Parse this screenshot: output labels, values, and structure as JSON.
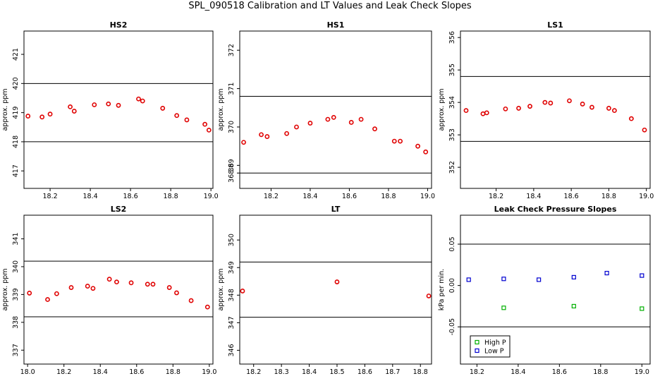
{
  "page_title": "SPL_090518  Calibration and LT Values and Leak Check Slopes",
  "colors": {
    "red": "#e00000",
    "green": "#00b000",
    "blue": "#0000d0",
    "ref": "#000000"
  },
  "chart_data": [
    {
      "type": "scatter",
      "title": "HS2",
      "ylabel": "approx. ppm",
      "xlim": [
        18.07,
        19.01
      ],
      "ylim": [
        416.4,
        421.8
      ],
      "xticks": [
        "18.2",
        "18.4",
        "18.6",
        "18.8",
        "19.0"
      ],
      "yticks": [
        "417",
        "418",
        "419",
        "420",
        "421"
      ],
      "hlines": [
        420.0,
        418.0
      ],
      "series": [
        {
          "color": "red",
          "points": [
            [
              18.09,
              418.88
            ],
            [
              18.16,
              418.85
            ],
            [
              18.2,
              418.95
            ],
            [
              18.3,
              419.2
            ],
            [
              18.32,
              419.05
            ],
            [
              18.42,
              419.27
            ],
            [
              18.49,
              419.3
            ],
            [
              18.54,
              419.25
            ],
            [
              18.64,
              419.47
            ],
            [
              18.66,
              419.4
            ],
            [
              18.76,
              419.15
            ],
            [
              18.83,
              418.9
            ],
            [
              18.88,
              418.75
            ],
            [
              18.97,
              418.6
            ],
            [
              18.99,
              418.4
            ]
          ]
        }
      ]
    },
    {
      "type": "scatter",
      "title": "HS1",
      "ylabel": "approx. ppm",
      "xlim": [
        18.04,
        19.02
      ],
      "ylim": [
        368.4,
        372.5
      ],
      "xticks": [
        "18.2",
        "18.4",
        "18.6",
        "18.8",
        "19.0"
      ],
      "yticks": [
        "368.8",
        "369",
        "370",
        "371",
        "372"
      ],
      "hlines": [
        370.8,
        368.8
      ],
      "series": [
        {
          "color": "red",
          "points": [
            [
              18.06,
              369.6
            ],
            [
              18.15,
              369.8
            ],
            [
              18.18,
              369.75
            ],
            [
              18.28,
              369.83
            ],
            [
              18.33,
              370.0
            ],
            [
              18.4,
              370.1
            ],
            [
              18.49,
              370.2
            ],
            [
              18.52,
              370.25
            ],
            [
              18.61,
              370.12
            ],
            [
              18.66,
              370.2
            ],
            [
              18.73,
              369.95
            ],
            [
              18.83,
              369.63
            ],
            [
              18.86,
              369.63
            ],
            [
              18.95,
              369.5
            ],
            [
              18.99,
              369.35
            ]
          ]
        }
      ]
    },
    {
      "type": "scatter",
      "title": "LS1",
      "ylabel": "approx. ppm",
      "xlim": [
        18.01,
        19.02
      ],
      "ylim": [
        351.35,
        356.2
      ],
      "xticks": [
        "18.2",
        "18.4",
        "18.6",
        "18.8",
        "19.0"
      ],
      "yticks": [
        "352",
        "353",
        "354",
        "355",
        "356"
      ],
      "hlines": [
        354.8,
        352.8
      ],
      "series": [
        {
          "color": "red",
          "points": [
            [
              18.04,
              353.75
            ],
            [
              18.13,
              353.65
            ],
            [
              18.15,
              353.68
            ],
            [
              18.25,
              353.8
            ],
            [
              18.32,
              353.82
            ],
            [
              18.38,
              353.88
            ],
            [
              18.46,
              354.0
            ],
            [
              18.49,
              353.98
            ],
            [
              18.59,
              354.05
            ],
            [
              18.66,
              353.95
            ],
            [
              18.71,
              353.85
            ],
            [
              18.8,
              353.82
            ],
            [
              18.83,
              353.75
            ],
            [
              18.92,
              353.5
            ],
            [
              18.99,
              353.15
            ]
          ]
        }
      ]
    },
    {
      "type": "scatter",
      "title": "LS2",
      "ylabel": "approx. ppm",
      "xlim": [
        17.98,
        19.02
      ],
      "ylim": [
        336.5,
        341.85
      ],
      "xticks": [
        "18.0",
        "18.2",
        "18.4",
        "18.6",
        "18.8",
        "19.0"
      ],
      "yticks": [
        "337",
        "338",
        "339",
        "340",
        "341"
      ],
      "hlines": [
        340.2,
        338.2
      ],
      "series": [
        {
          "color": "red",
          "points": [
            [
              18.01,
              339.05
            ],
            [
              18.11,
              338.82
            ],
            [
              18.16,
              339.03
            ],
            [
              18.24,
              339.25
            ],
            [
              18.33,
              339.3
            ],
            [
              18.36,
              339.22
            ],
            [
              18.45,
              339.55
            ],
            [
              18.49,
              339.45
            ],
            [
              18.57,
              339.42
            ],
            [
              18.66,
              339.37
            ],
            [
              18.69,
              339.37
            ],
            [
              18.78,
              339.25
            ],
            [
              18.82,
              339.06
            ],
            [
              18.9,
              338.78
            ],
            [
              18.99,
              338.55
            ]
          ]
        }
      ]
    },
    {
      "type": "scatter",
      "title": "LT",
      "ylabel": "approx. ppm",
      "xlim": [
        18.15,
        18.84
      ],
      "ylim": [
        345.5,
        350.9
      ],
      "xticks": [
        "18.2",
        "18.3",
        "18.4",
        "18.5",
        "18.6",
        "18.7",
        "18.8"
      ],
      "yticks": [
        "346",
        "347",
        "348",
        "349",
        "350"
      ],
      "hlines": [
        349.2,
        347.2
      ],
      "series": [
        {
          "color": "red",
          "points": [
            [
              18.16,
              348.15
            ],
            [
              18.5,
              348.48
            ],
            [
              18.83,
              347.97
            ]
          ]
        }
      ]
    },
    {
      "type": "scatter",
      "title": "Leak Check Pressure Slopes",
      "ylabel": "kPa per min.",
      "xlim": [
        18.12,
        19.04
      ],
      "ylim": [
        -0.095,
        0.085
      ],
      "xticks": [
        "18.2",
        "18.4",
        "18.6",
        "18.8",
        "19.0"
      ],
      "yticks": [
        "-0.05",
        "0.00",
        "0.05"
      ],
      "hlines": [
        0.05,
        -0.05
      ],
      "legend": {
        "position": "bottom-left",
        "entries": [
          {
            "label": "High P",
            "color": "green"
          },
          {
            "label": "Low P",
            "color": "blue"
          }
        ]
      },
      "series": [
        {
          "name": "High P",
          "color": "green",
          "marker": "square",
          "points": [
            [
              18.33,
              -0.027
            ],
            [
              18.67,
              -0.025
            ],
            [
              19.0,
              -0.028
            ]
          ]
        },
        {
          "name": "Low P",
          "color": "blue",
          "marker": "square",
          "points": [
            [
              18.16,
              0.007
            ],
            [
              18.33,
              0.008
            ],
            [
              18.5,
              0.007
            ],
            [
              18.67,
              0.01
            ],
            [
              18.83,
              0.015
            ],
            [
              19.0,
              0.012
            ]
          ]
        }
      ]
    }
  ]
}
